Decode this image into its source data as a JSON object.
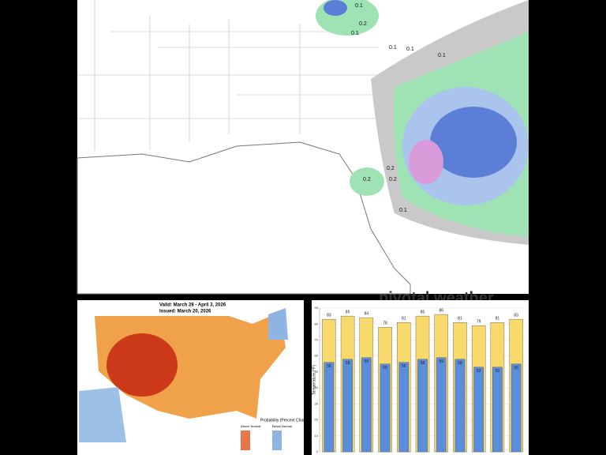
{
  "weather_map": {
    "labels": [
      "0.1",
      "0.2",
      "0.1",
      "0.1",
      "0.1",
      "0.2",
      "0.2",
      "0.1",
      "0.2",
      "0.1"
    ],
    "watermark": "pivotal weather"
  },
  "outlook_map": {
    "valid": "Valid: March 28 - April 3, 2026",
    "issued": "Issued: March 20, 2026",
    "legend_title": "Probability (Percent Chance)",
    "above": "Above Normal",
    "below": "Below Normal"
  },
  "chart_data": {
    "type": "bar",
    "ylabel": "Temperature (°F)",
    "categories": [
      null,
      null,
      null,
      null,
      null,
      null,
      null,
      null,
      null,
      null,
      null
    ],
    "series": [
      {
        "color": "#f8d96c",
        "values": [
          83,
          85,
          84,
          78,
          81,
          85,
          86,
          81,
          79,
          81,
          83
        ]
      },
      {
        "color": "#5a8ddc",
        "values": [
          56,
          58,
          59,
          55,
          56,
          58,
          59,
          58,
          53,
          53,
          55
        ]
      }
    ],
    "ylim": [
      0,
      90
    ],
    "yticks": [
      0,
      10,
      20,
      30,
      40,
      50,
      60,
      70,
      80,
      90
    ],
    "grid": true
  }
}
